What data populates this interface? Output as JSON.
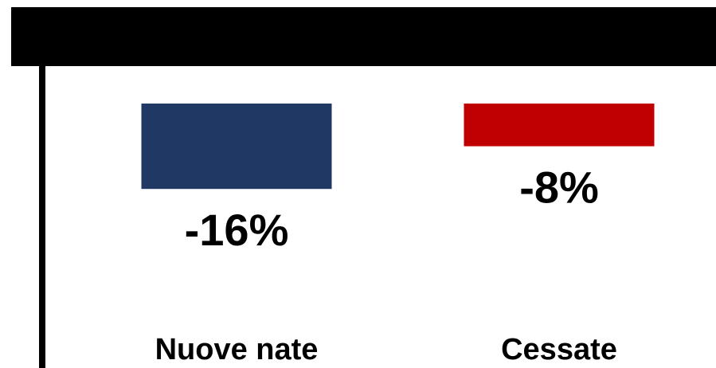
{
  "chart_data": {
    "type": "bar",
    "title": "",
    "xlabel": "",
    "ylabel": "",
    "categories": [
      "Nuove nate",
      "Cessate"
    ],
    "values": [
      -16,
      -8
    ],
    "data_labels": [
      "-16%",
      "-8%"
    ],
    "colors": [
      "#203864",
      "#c00000"
    ],
    "ylim": [
      -32,
      0
    ],
    "grid": false,
    "legend": "none"
  }
}
